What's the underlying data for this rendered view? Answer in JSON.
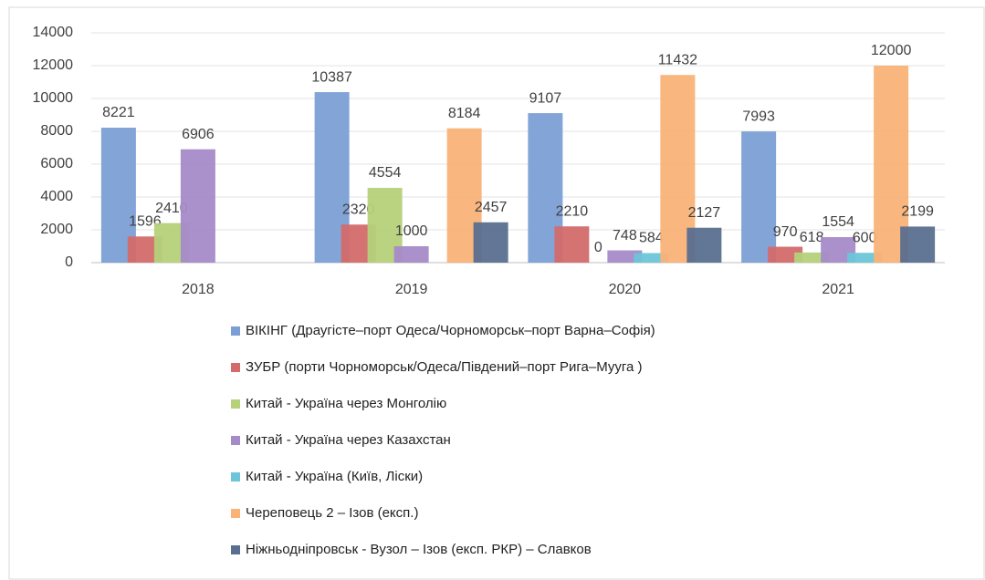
{
  "chart_data": {
    "type": "bar",
    "categories": [
      "2018",
      "2019",
      "2020",
      "2021"
    ],
    "series": [
      {
        "name": "ВІКІНГ (Драугісте–порт Одеса/Чорноморськ–порт Варна–Софія)",
        "color": "#7b9fd4",
        "values": [
          8221,
          10387,
          9107,
          7993
        ]
      },
      {
        "name": "ЗУБР (порти Чорноморськ/Одеса/Південий–порт Рига–Мууга )",
        "color": "#d36b6b",
        "values": [
          1596,
          2320,
          2210,
          970
        ]
      },
      {
        "name": "Китай - Україна через Монголію",
        "color": "#b5d17a",
        "values": [
          2410,
          4554,
          0,
          618
        ]
      },
      {
        "name": "Китай - Україна через Казахстан",
        "color": "#a58bc8",
        "values": [
          6906,
          1000,
          748,
          1554
        ]
      },
      {
        "name": "Китай - Україна (Київ, Ліски)",
        "color": "#6cc5d8",
        "values": [
          null,
          null,
          584,
          600
        ]
      },
      {
        "name": "Череповець 2 – Ізов (експ.)",
        "color": "#f9b277",
        "values": [
          null,
          8184,
          11432,
          12000
        ]
      },
      {
        "name": "Ніжньодніпровськ - Вузол – Ізов (експ. РКР) – Славков",
        "color": "#5a6f8f",
        "values": [
          null,
          2457,
          2127,
          2199
        ]
      }
    ],
    "ylim": [
      0,
      14000
    ],
    "yticks": [
      0,
      2000,
      4000,
      6000,
      8000,
      10000,
      12000,
      14000
    ],
    "grid": true,
    "legend": "bottom"
  }
}
